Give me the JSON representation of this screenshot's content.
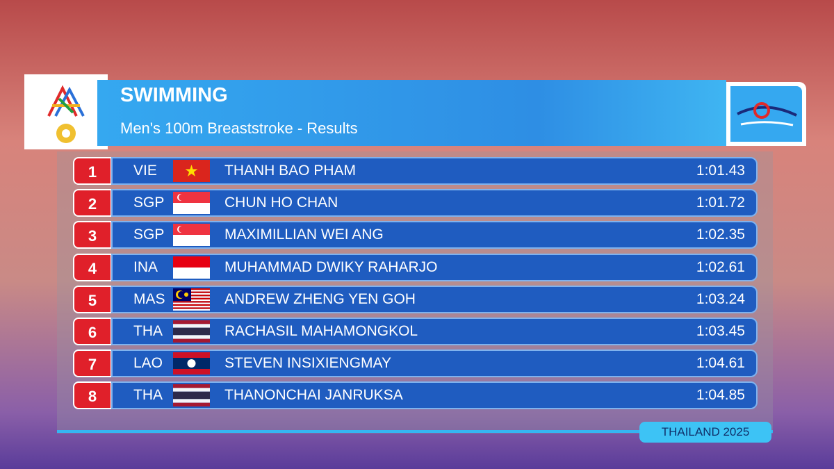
{
  "header": {
    "title": "SWIMMING",
    "subtitle": "Men's 100m Breaststroke - Results"
  },
  "results": [
    {
      "rank": "1",
      "country": "VIE",
      "name": "THANH BAO PHAM",
      "time": "1:01.43"
    },
    {
      "rank": "2",
      "country": "SGP",
      "name": "CHUN HO CHAN",
      "time": "1:01.72"
    },
    {
      "rank": "3",
      "country": "SGP",
      "name": "MAXIMILLIAN WEI ANG",
      "time": "1:02.35"
    },
    {
      "rank": "4",
      "country": "INA",
      "name": "MUHAMMAD DWIKY RAHARJO",
      "time": "1:02.61"
    },
    {
      "rank": "5",
      "country": "MAS",
      "name": "ANDREW ZHENG YEN GOH",
      "time": "1:03.24"
    },
    {
      "rank": "6",
      "country": "THA",
      "name": "RACHASIL MAHAMONGKOL",
      "time": "1:03.45"
    },
    {
      "rank": "7",
      "country": "LAO",
      "name": "STEVEN INSIXIENGMAY",
      "time": "1:04.61"
    },
    {
      "rank": "8",
      "country": "THA",
      "name": "THANONCHAI JANRUKSA",
      "time": "1:04.85"
    }
  ],
  "footer": {
    "label": "THAILAND 2025"
  }
}
